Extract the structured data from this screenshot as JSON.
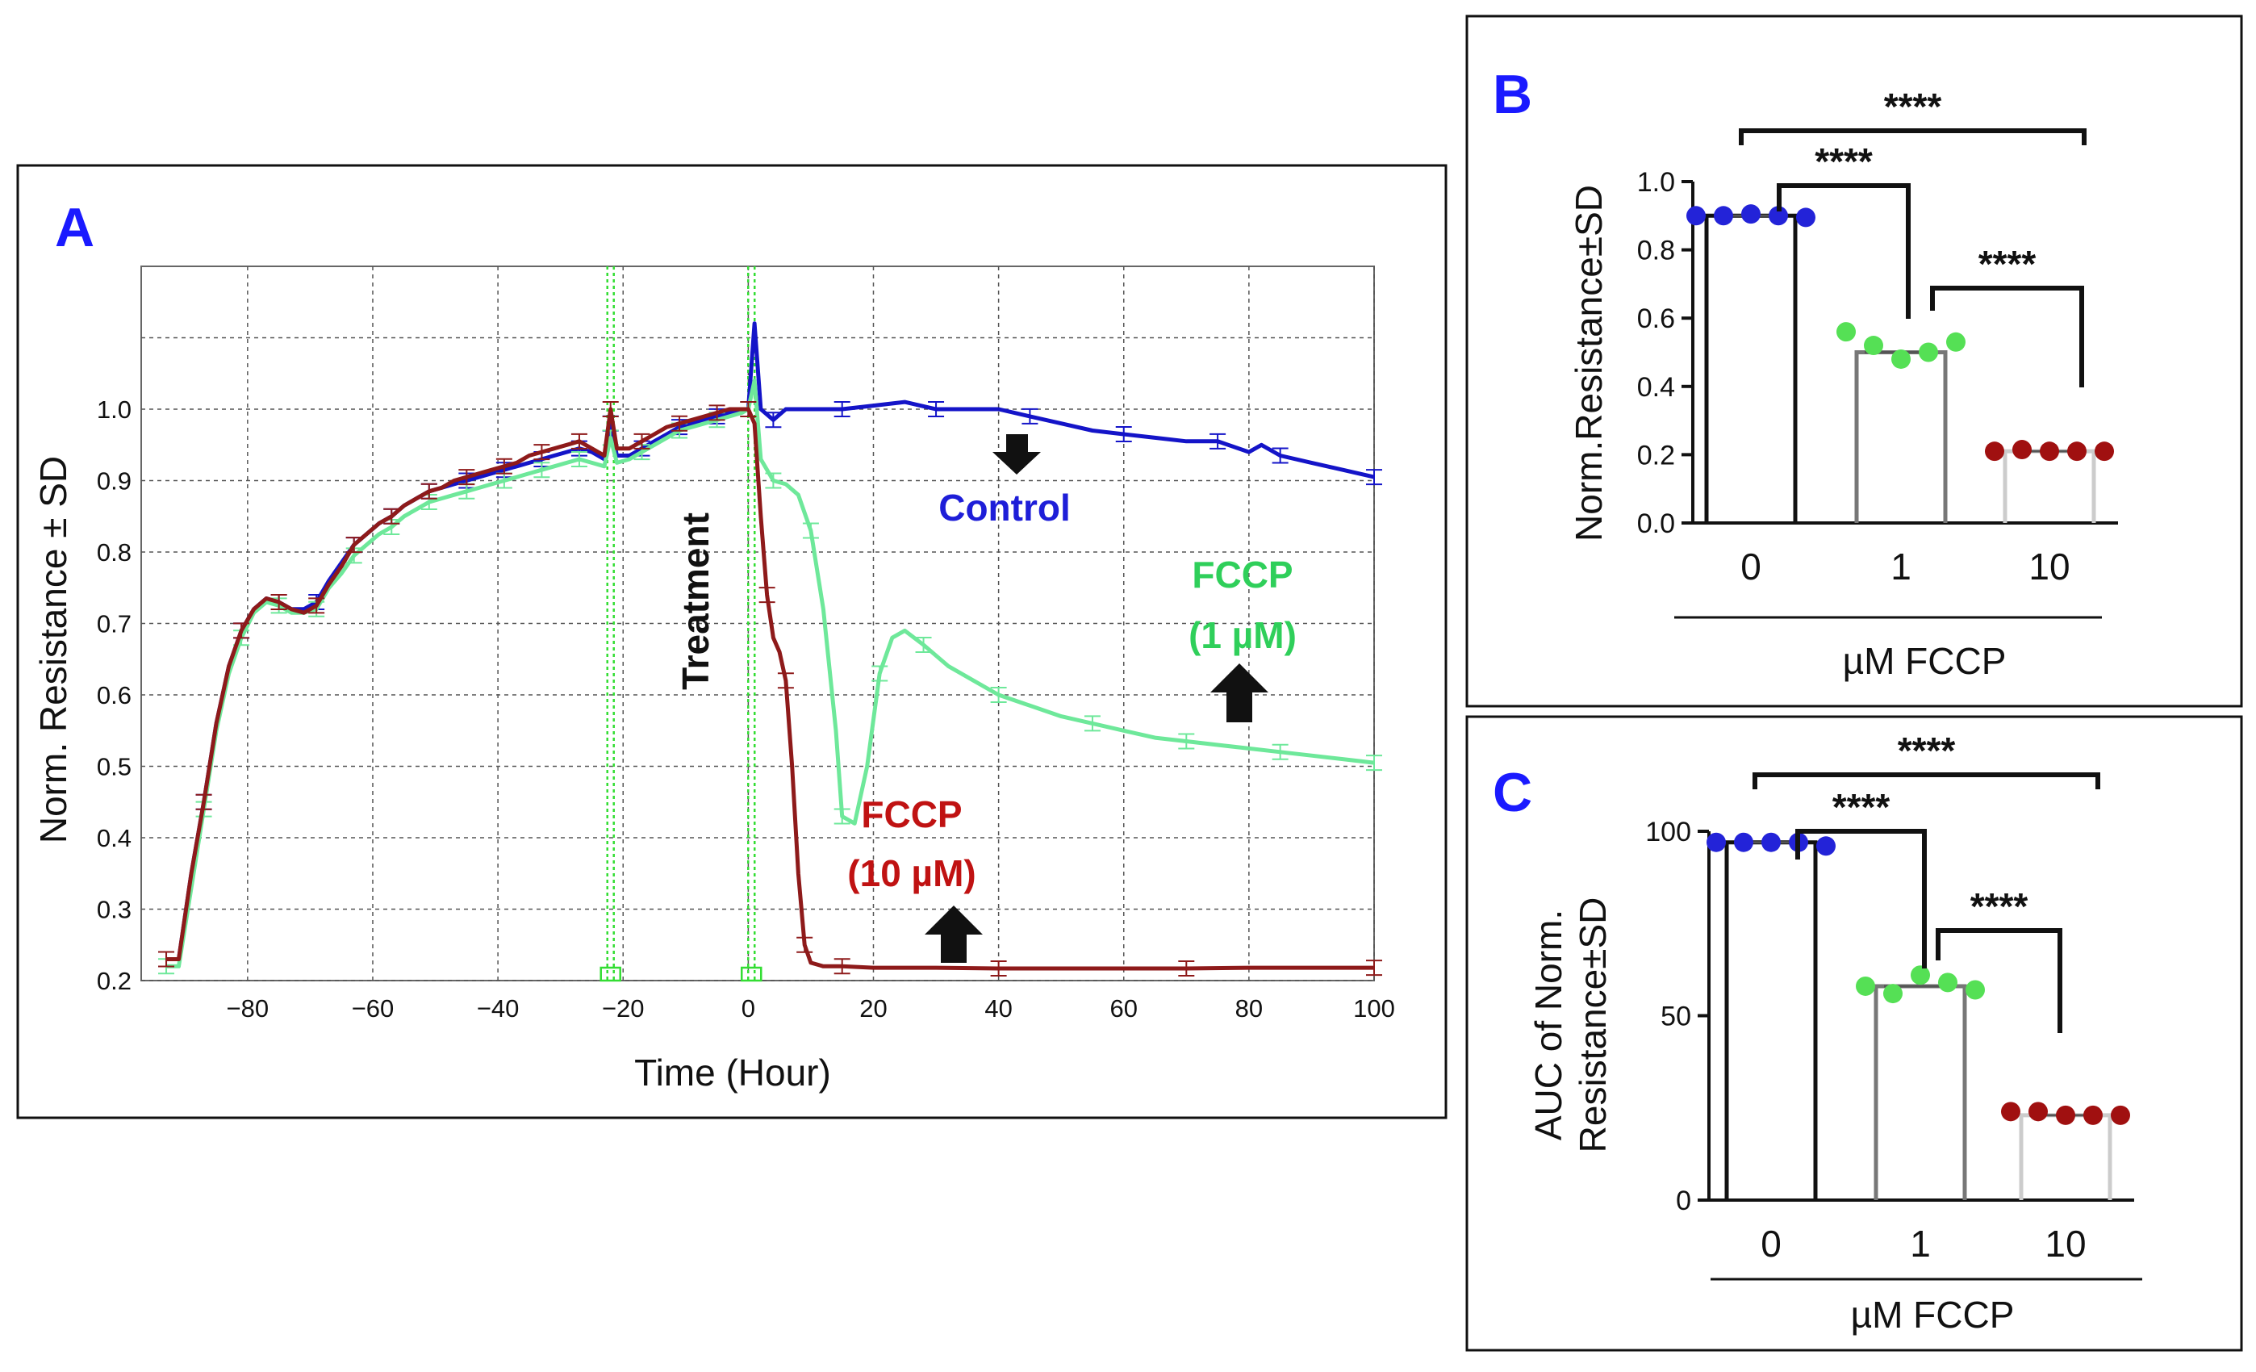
{
  "chart_data": [
    {
      "panel": "A",
      "type": "line",
      "xlabel": "Time (Hour)",
      "ylabel": "Norm. Resistance ± SD",
      "xlim": [
        -97,
        100
      ],
      "ylim": [
        0.2,
        1.2
      ],
      "xticks": [
        -80,
        -60,
        -40,
        -20,
        0,
        20,
        40,
        60,
        80,
        100
      ],
      "xtick_labels": [
        "−80",
        "−60",
        "−40",
        "−20",
        "0",
        "20",
        "40",
        "60",
        "80",
        "100"
      ],
      "yticks": [
        0.2,
        0.3,
        0.4,
        0.5,
        0.6,
        0.7,
        0.8,
        0.9,
        1.0
      ],
      "ytick_labels": [
        "0.2",
        "0.3",
        "0.4",
        "0.5",
        "0.6",
        "0.7",
        "0.8",
        "0.9",
        "1.0"
      ],
      "markers": [
        -22,
        0.5
      ],
      "annotations": {
        "treatment": "Treatment",
        "control": "Control",
        "fccp1_line1": "FCCP",
        "fccp1_line2": "(1 µM)",
        "fccp10_line1": "FCCP",
        "fccp10_line2": "(10 µM)"
      },
      "series": [
        {
          "name": "Control",
          "color": "#1414c8",
          "x": [
            -93,
            -91,
            -89,
            -87,
            -85,
            -83,
            -81,
            -79,
            -77,
            -75,
            -73,
            -71,
            -69,
            -67,
            -65,
            -63,
            -61,
            -59,
            -57,
            -55,
            -53,
            -51,
            -49,
            -47,
            -45,
            -43,
            -41,
            -39,
            -37,
            -35,
            -33,
            -31,
            -29,
            -27,
            -25,
            -23,
            -22,
            -21,
            -19,
            -17,
            -15,
            -13,
            -11,
            -9,
            -7,
            -5,
            -3,
            -1,
            0,
            1,
            2,
            4,
            6,
            10,
            15,
            20,
            25,
            30,
            35,
            40,
            45,
            50,
            55,
            60,
            65,
            70,
            75,
            80,
            82,
            85,
            90,
            95,
            100
          ],
          "y": [
            0.23,
            0.23,
            0.35,
            0.45,
            0.56,
            0.64,
            0.69,
            0.72,
            0.735,
            0.73,
            0.72,
            0.72,
            0.73,
            0.76,
            0.785,
            0.81,
            0.825,
            0.84,
            0.85,
            0.865,
            0.875,
            0.885,
            0.89,
            0.895,
            0.9,
            0.905,
            0.91,
            0.915,
            0.92,
            0.925,
            0.93,
            0.935,
            0.94,
            0.945,
            0.94,
            0.93,
            0.98,
            0.935,
            0.935,
            0.945,
            0.955,
            0.965,
            0.975,
            0.98,
            0.985,
            0.99,
            0.995,
            1.0,
            1.0,
            1.12,
            1.0,
            0.985,
            1.0,
            1.0,
            1.0,
            1.005,
            1.01,
            1.0,
            1.0,
            1.0,
            0.99,
            0.98,
            0.97,
            0.965,
            0.96,
            0.955,
            0.955,
            0.94,
            0.95,
            0.935,
            0.925,
            0.915,
            0.905
          ]
        },
        {
          "name": "FCCP (1 µM)",
          "color": "#6ee89a",
          "x": [
            -93,
            -91,
            -89,
            -87,
            -85,
            -83,
            -81,
            -79,
            -77,
            -75,
            -73,
            -71,
            -69,
            -67,
            -65,
            -63,
            -61,
            -59,
            -57,
            -55,
            -53,
            -51,
            -49,
            -47,
            -45,
            -43,
            -41,
            -39,
            -37,
            -35,
            -33,
            -31,
            -29,
            -27,
            -25,
            -23,
            -22,
            -21,
            -19,
            -17,
            -15,
            -13,
            -11,
            -9,
            -7,
            -5,
            -3,
            -1,
            0,
            1,
            2,
            4,
            6,
            8,
            10,
            12,
            14,
            15,
            17,
            19,
            21,
            23,
            25,
            28,
            32,
            36,
            40,
            45,
            50,
            55,
            60,
            65,
            70,
            75,
            80,
            85,
            90,
            95,
            100
          ],
          "y": [
            0.22,
            0.22,
            0.33,
            0.44,
            0.55,
            0.63,
            0.68,
            0.715,
            0.73,
            0.725,
            0.715,
            0.715,
            0.72,
            0.75,
            0.77,
            0.795,
            0.81,
            0.825,
            0.835,
            0.85,
            0.86,
            0.87,
            0.875,
            0.88,
            0.885,
            0.89,
            0.895,
            0.9,
            0.905,
            0.91,
            0.915,
            0.92,
            0.925,
            0.93,
            0.925,
            0.92,
            0.96,
            0.925,
            0.93,
            0.94,
            0.95,
            0.96,
            0.97,
            0.975,
            0.98,
            0.985,
            0.99,
            0.995,
            1.0,
            1.04,
            0.93,
            0.9,
            0.895,
            0.88,
            0.83,
            0.72,
            0.55,
            0.43,
            0.42,
            0.5,
            0.63,
            0.68,
            0.69,
            0.67,
            0.64,
            0.62,
            0.6,
            0.585,
            0.57,
            0.56,
            0.55,
            0.54,
            0.535,
            0.53,
            0.525,
            0.52,
            0.515,
            0.51,
            0.505
          ]
        },
        {
          "name": "FCCP (10 µM)",
          "color": "#8e1a1a",
          "x": [
            -93,
            -91,
            -89,
            -87,
            -85,
            -83,
            -81,
            -79,
            -77,
            -75,
            -73,
            -71,
            -69,
            -67,
            -65,
            -63,
            -61,
            -59,
            -57,
            -55,
            -53,
            -51,
            -49,
            -47,
            -45,
            -43,
            -41,
            -39,
            -37,
            -35,
            -33,
            -31,
            -29,
            -27,
            -25,
            -23,
            -22,
            -21,
            -19,
            -17,
            -15,
            -13,
            -11,
            -9,
            -7,
            -5,
            -3,
            -1,
            0,
            1,
            2,
            3,
            4,
            5,
            6,
            7,
            8,
            9,
            10,
            12,
            15,
            20,
            30,
            40,
            50,
            60,
            70,
            80,
            90,
            100
          ],
          "y": [
            0.23,
            0.23,
            0.35,
            0.45,
            0.56,
            0.64,
            0.69,
            0.72,
            0.735,
            0.73,
            0.72,
            0.715,
            0.725,
            0.755,
            0.78,
            0.81,
            0.825,
            0.84,
            0.85,
            0.865,
            0.875,
            0.885,
            0.89,
            0.9,
            0.905,
            0.91,
            0.915,
            0.92,
            0.925,
            0.935,
            0.94,
            0.945,
            0.95,
            0.955,
            0.945,
            0.935,
            1.0,
            0.945,
            0.945,
            0.955,
            0.965,
            0.975,
            0.98,
            0.985,
            0.99,
            0.995,
            1.0,
            1.0,
            1.0,
            0.98,
            0.85,
            0.74,
            0.68,
            0.66,
            0.62,
            0.5,
            0.35,
            0.25,
            0.225,
            0.22,
            0.22,
            0.218,
            0.218,
            0.217,
            0.217,
            0.217,
            0.217,
            0.218,
            0.218,
            0.218
          ]
        }
      ]
    },
    {
      "panel": "B",
      "type": "bar",
      "xlabel": "µM FCCP",
      "ylabel": "Norm.Resistance±SD",
      "categories": [
        "0",
        "1",
        "10"
      ],
      "values": [
        0.9,
        0.5,
        0.21
      ],
      "ylim": [
        0,
        1.0
      ],
      "yticks": [
        "0.0",
        "0.2",
        "0.4",
        "0.6",
        "0.8",
        "1.0"
      ],
      "colors": [
        "#2323d8",
        "#55e055",
        "#a01010"
      ],
      "points": [
        [
          0.9,
          0.9,
          0.905,
          0.9,
          0.895
        ],
        [
          0.56,
          0.52,
          0.48,
          0.5,
          0.53
        ],
        [
          0.21,
          0.215,
          0.21,
          0.21,
          0.21
        ]
      ],
      "significance": [
        "****",
        "****",
        "****"
      ]
    },
    {
      "panel": "C",
      "type": "bar",
      "xlabel": "µM FCCP",
      "ylabel_line1": "AUC of Norm.",
      "ylabel_line2": "Resistance±SD",
      "categories": [
        "0",
        "1",
        "10"
      ],
      "values": [
        97,
        58,
        23
      ],
      "ylim": [
        0,
        100
      ],
      "yticks": [
        "0",
        "50",
        "100"
      ],
      "colors": [
        "#2323d8",
        "#55e055",
        "#a01010"
      ],
      "points": [
        [
          97,
          97,
          97,
          97,
          96
        ],
        [
          58,
          56,
          61,
          59,
          57
        ],
        [
          24,
          24,
          23,
          23,
          23
        ]
      ],
      "significance": [
        "****",
        "****",
        "****"
      ]
    }
  ],
  "panels": {
    "a": "A",
    "b": "B",
    "c": "C"
  }
}
